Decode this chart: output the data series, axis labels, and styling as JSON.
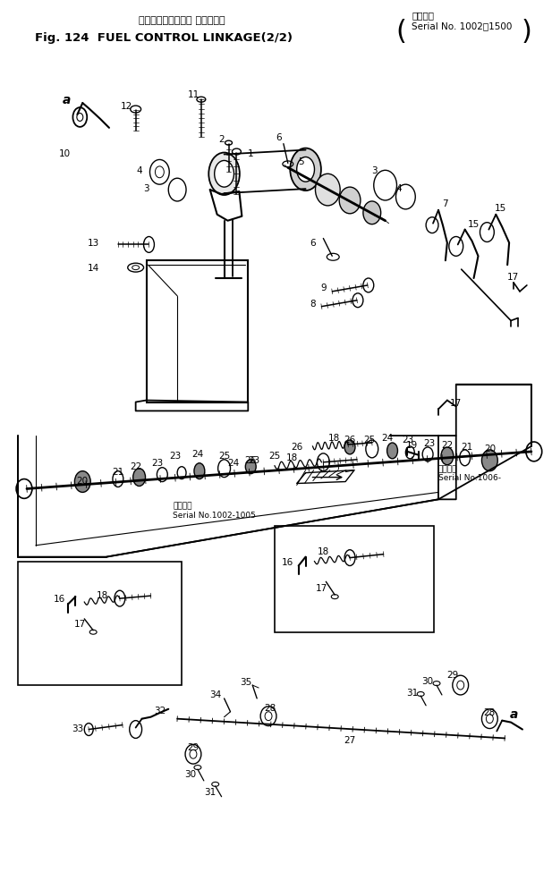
{
  "fig_width": 6.17,
  "fig_height": 9.95,
  "dpi": 100,
  "bg": "#ffffff",
  "lc": "#000000",
  "title_jp": "フェルコントロール リンケージ",
  "title_en": "Fig. 124  FUEL CONTROL LINKAGE(2/2)",
  "serial_top": "適用号機\nSerial No. 1002～1500",
  "serial_mid_left": "適用号機\nSerial No.1002-1005",
  "serial_mid_right": "適用号機\nSerial No.1006-"
}
